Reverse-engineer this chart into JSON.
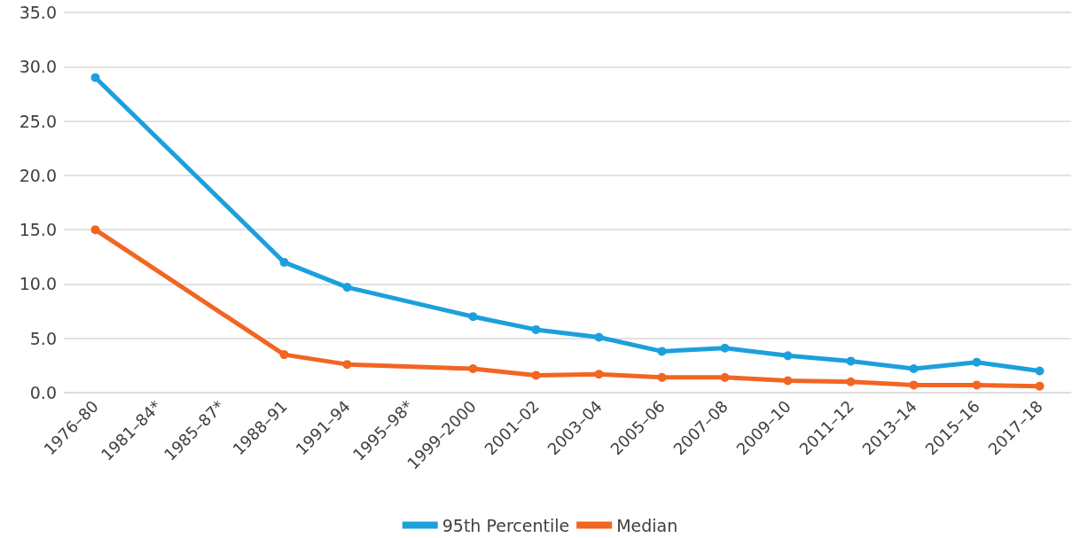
{
  "chart_data": {
    "type": "line",
    "categories": [
      "1976–80",
      "1981–84*",
      "1985–87*",
      "1988–91",
      "1991–94",
      "1995–98*",
      "1999–2000",
      "2001–02",
      "2003–04",
      "2005–06",
      "2007–08",
      "2009–10",
      "2011–12",
      "2013–14",
      "2015–16",
      "2017–18"
    ],
    "series": [
      {
        "name": "95th Percentile",
        "color": "#1ca0dc",
        "values": [
          29.0,
          null,
          null,
          12.0,
          9.7,
          null,
          7.0,
          5.8,
          5.1,
          3.8,
          4.1,
          3.4,
          2.9,
          2.2,
          2.8,
          2.0
        ]
      },
      {
        "name": "Median",
        "color": "#f26522",
        "values": [
          15.0,
          null,
          null,
          3.5,
          2.6,
          null,
          2.2,
          1.6,
          1.7,
          1.4,
          1.4,
          1.1,
          1.0,
          0.7,
          0.7,
          0.6
        ]
      }
    ],
    "ylim": [
      0,
      35
    ],
    "yticks": [
      {
        "value": 0,
        "label": "0.0"
      },
      {
        "value": 5,
        "label": "5.0"
      },
      {
        "value": 10,
        "label": "10.0"
      },
      {
        "value": 15,
        "label": "15.0"
      },
      {
        "value": 20,
        "label": "20.0"
      },
      {
        "value": 25,
        "label": "25.0"
      },
      {
        "value": 30,
        "label": "30.0"
      },
      {
        "value": 35,
        "label": "35.0"
      }
    ],
    "grid": "y",
    "legend": "bottom",
    "marker": "circle",
    "line_style": "solid"
  }
}
